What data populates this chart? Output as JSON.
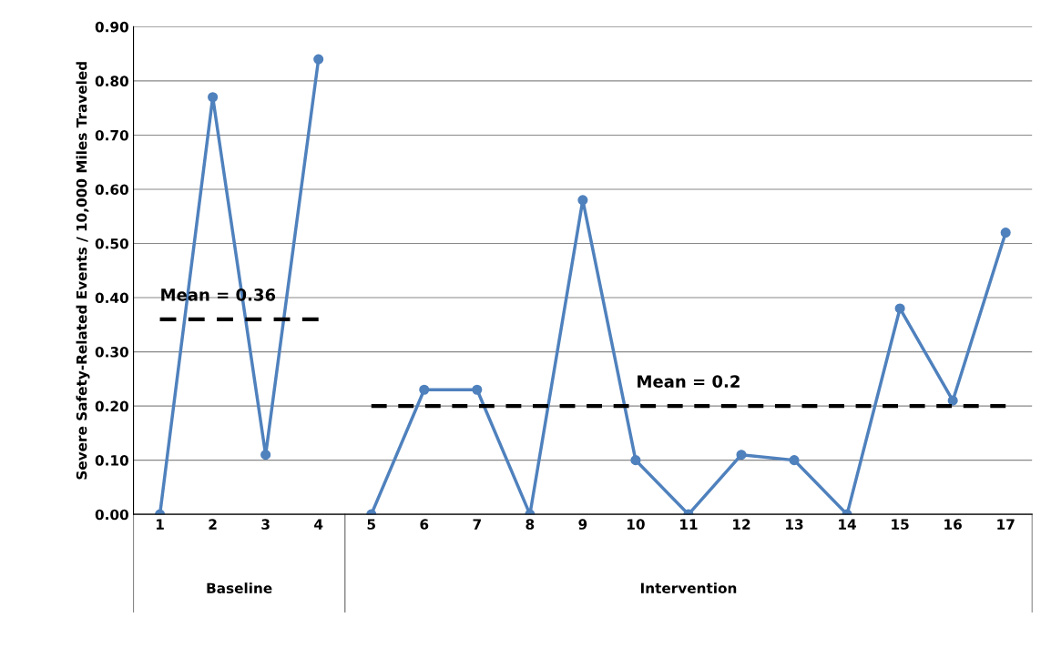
{
  "chart_data": {
    "type": "line",
    "ylabel": "Severe Safety-Related Events / 10,000 Miles Traveled",
    "categories": [
      "1",
      "2",
      "3",
      "4",
      "5",
      "6",
      "7",
      "8",
      "9",
      "10",
      "11",
      "12",
      "13",
      "14",
      "15",
      "16",
      "17"
    ],
    "series": [
      {
        "color": "#4f81bd",
        "marker": "circle",
        "values": [
          0,
          0.77,
          0.11,
          0.84,
          null,
          null,
          null,
          null,
          null,
          null,
          null,
          null,
          null,
          null,
          null,
          null,
          null
        ]
      },
      {
        "color": "#4f81bd",
        "marker": "circle",
        "values": [
          null,
          null,
          null,
          null,
          0,
          0.23,
          0.23,
          0,
          0.58,
          0.1,
          0,
          0.11,
          0.1,
          0,
          0.38,
          0.21,
          0.52
        ]
      },
      {
        "color": "#000000",
        "marker": "none",
        "line_style": "dashed",
        "values": [
          0.36,
          0.36,
          0.36,
          0.36,
          null,
          null,
          null,
          null,
          null,
          null,
          null,
          null,
          null,
          null,
          null,
          null,
          null
        ]
      },
      {
        "color": "#000000",
        "marker": "none",
        "line_style": "dashed",
        "values": [
          null,
          null,
          null,
          null,
          0.2,
          0.2,
          0.2,
          0.2,
          0.2,
          0.2,
          0.2,
          0.2,
          0.2,
          0.2,
          0.2,
          0.2,
          0.2
        ]
      }
    ],
    "annotations": [
      {
        "text": "Mean = 0.36",
        "x": "1",
        "y": 0.36
      },
      {
        "text": "Mean = 0.2",
        "x": "11",
        "y": 0.2
      },
      "Baseline",
      "Intervention"
    ],
    "ylim": [
      0,
      0.9
    ],
    "yticks": [
      {
        "value": 0,
        "label": "0.00"
      },
      {
        "value": 0.1,
        "label": "0.10"
      },
      {
        "value": 0.2,
        "label": "0.20"
      },
      {
        "value": 0.3,
        "label": "0.30"
      },
      {
        "value": 0.4,
        "label": "0.40"
      },
      {
        "value": 0.5,
        "label": "0.50"
      },
      {
        "value": 0.6,
        "label": "0.60"
      },
      {
        "value": 0.7,
        "label": "0.70"
      },
      {
        "value": 0.8,
        "label": "0.80"
      },
      {
        "value": 0.9,
        "label": "0.90"
      }
    ],
    "grid": "y",
    "legend": false
  }
}
